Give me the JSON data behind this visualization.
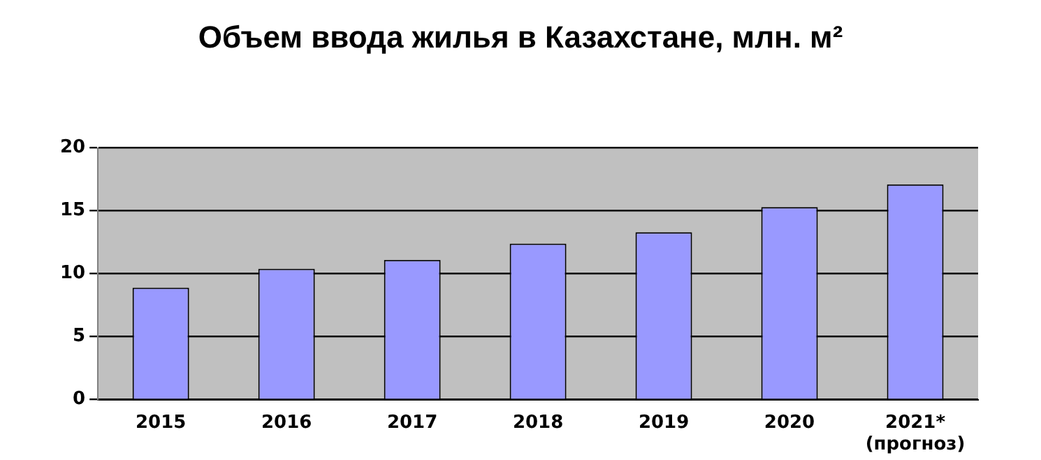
{
  "chart_data": {
    "type": "bar",
    "title": "Объем ввода жилья в Казахстане, млн. м²",
    "categories": [
      "2015",
      "2016",
      "2017",
      "2018",
      "2019",
      "2020",
      "2021*\n(прогноз)"
    ],
    "values": [
      8.9,
      10.4,
      11.1,
      12.4,
      13.3,
      15.3,
      17.1
    ],
    "color": "#9999ff",
    "ylim": [
      0,
      20
    ],
    "yticks": [
      0,
      5,
      10,
      15,
      20
    ],
    "grid": "y",
    "legend": false
  }
}
